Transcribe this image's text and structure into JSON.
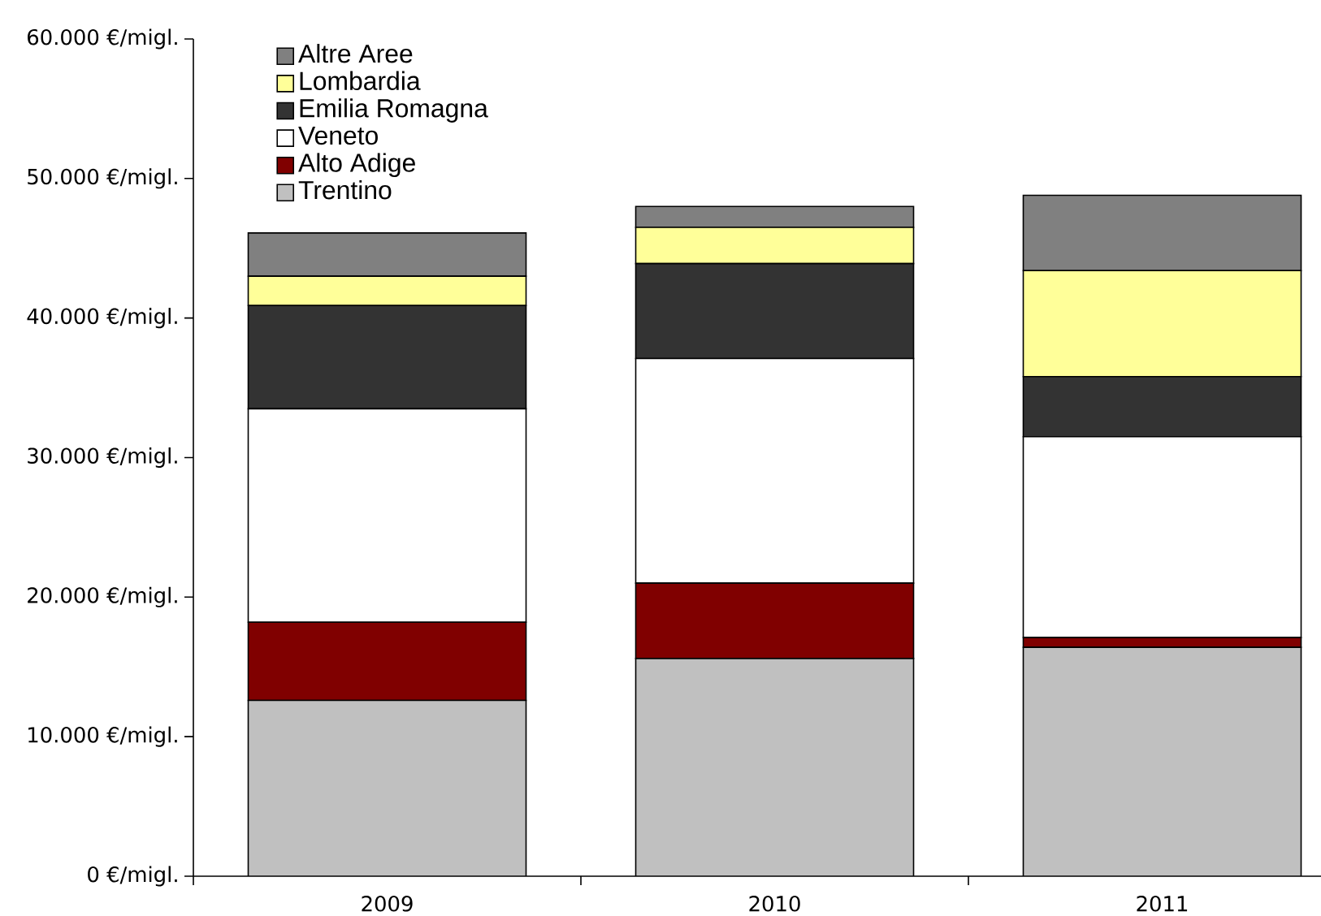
{
  "chart_data": {
    "type": "bar",
    "stacked": true,
    "categories": [
      "2009",
      "2010",
      "2011"
    ],
    "series": [
      {
        "name": "Trentino",
        "color": "#c0c0c0",
        "values": [
          12600,
          15600,
          16400
        ]
      },
      {
        "name": "Alto Adige",
        "color": "#800000",
        "values": [
          5600,
          5400,
          700
        ]
      },
      {
        "name": "Veneto",
        "color": "#ffffff",
        "values": [
          15300,
          16100,
          14400
        ]
      },
      {
        "name": "Emilia Romagna",
        "color": "#333333",
        "values": [
          7400,
          6800,
          4300
        ]
      },
      {
        "name": "Lombardia",
        "color": "#ffff99",
        "values": [
          2100,
          2600,
          7600
        ]
      },
      {
        "name": "Altre Aree",
        "color": "#808080",
        "values": [
          3100,
          1500,
          5400
        ]
      }
    ],
    "ylim": [
      0,
      60000
    ],
    "yticks": [
      {
        "value": 0,
        "label": "0 €/migl."
      },
      {
        "value": 10000,
        "label": "10.000 €/migl."
      },
      {
        "value": 20000,
        "label": "20.000 €/migl."
      },
      {
        "value": 30000,
        "label": "30.000 €/migl."
      },
      {
        "value": 40000,
        "label": "40.000 €/migl."
      },
      {
        "value": 50000,
        "label": "50.000 €/migl."
      },
      {
        "value": 60000,
        "label": "60.000 €/migl."
      }
    ],
    "legend": "top left"
  }
}
